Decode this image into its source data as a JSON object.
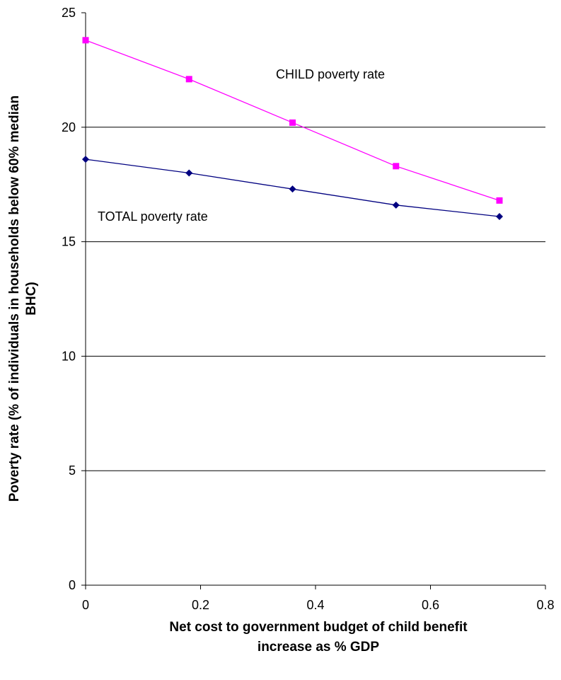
{
  "chart_data": {
    "type": "line",
    "x_label": [
      "Net cost to government budget of child benefit",
      "increase as % GDP"
    ],
    "y_label": [
      "Poverty rate (% of individuals in households below 60% median",
      "BHC)"
    ],
    "annotations": [
      "CHILD poverty rate",
      "TOTAL poverty rate"
    ],
    "x": [
      0,
      0.18,
      0.36,
      0.54,
      0.72
    ],
    "series": [
      {
        "name": "CHILD poverty rate",
        "color": "#ff00ff",
        "marker": "square",
        "values": [
          23.8,
          22.1,
          20.2,
          18.3,
          16.8
        ]
      },
      {
        "name": "TOTAL poverty rate",
        "color": "#000080",
        "marker": "diamond",
        "values": [
          18.6,
          18.0,
          17.3,
          16.6,
          16.1
        ]
      }
    ],
    "xlim": [
      0,
      0.8
    ],
    "xticks": [
      0,
      0.2,
      0.4,
      0.6,
      0.8
    ],
    "ylim": [
      0,
      25
    ],
    "yticks": [
      0,
      5,
      10,
      15,
      20,
      25
    ],
    "grid": true
  }
}
